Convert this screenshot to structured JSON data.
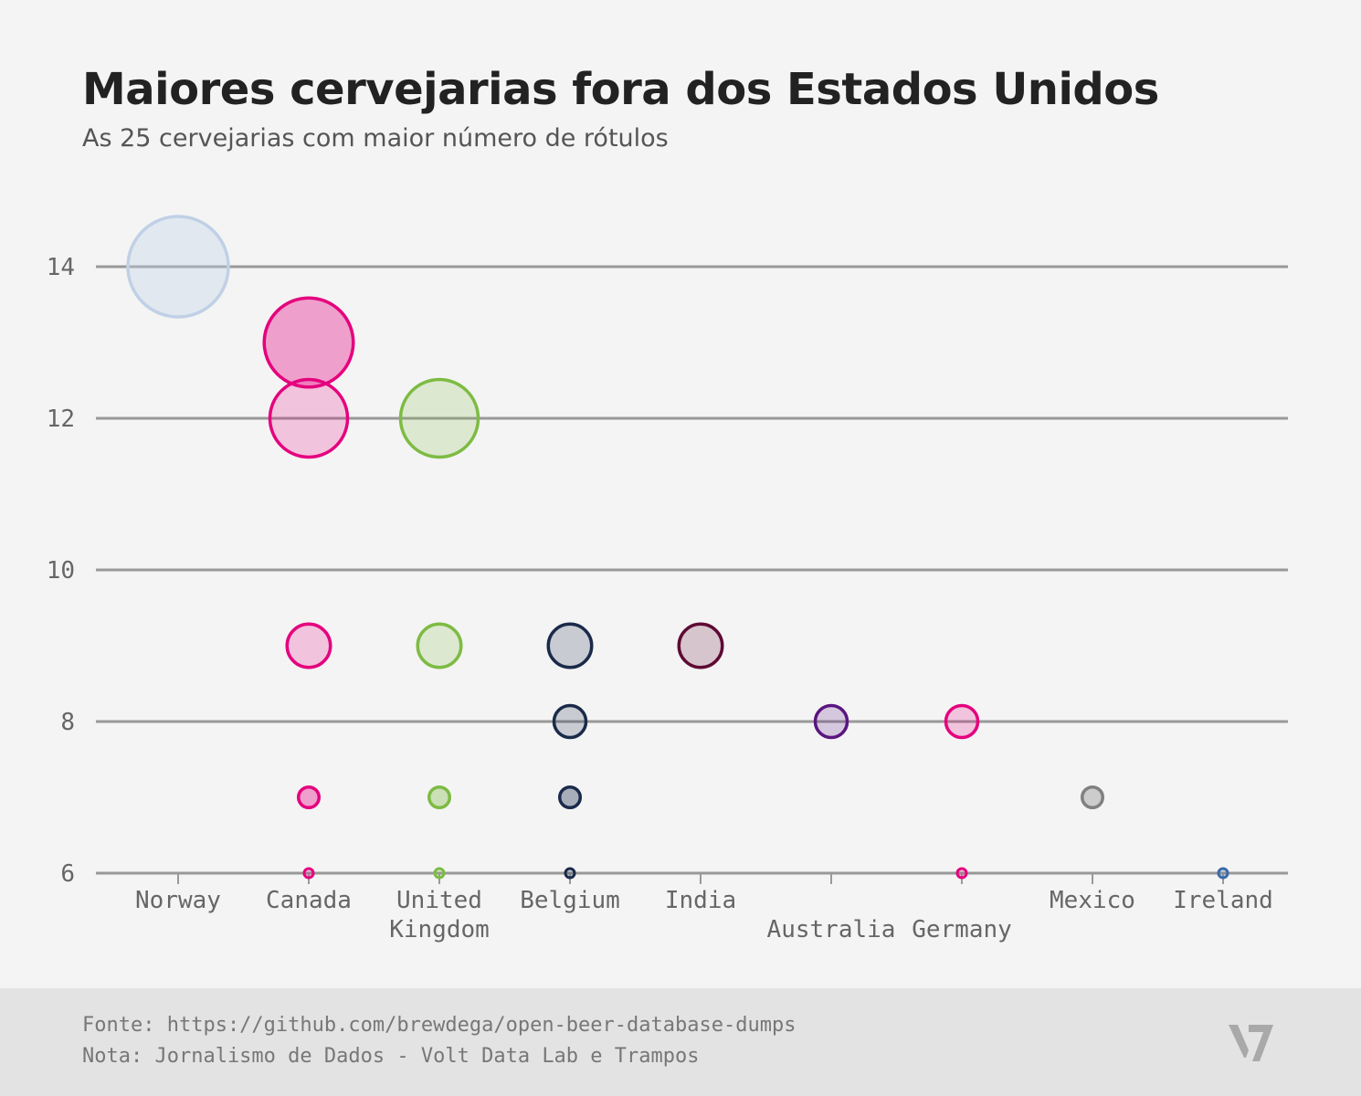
{
  "title": "Maiores cervejarias fora dos Estados Unidos",
  "subtitle": "As 25 cervejarias com maior número de rótulos",
  "footer": {
    "source": "Fonte: https://github.com/brewdega/open-beer-database-dumps",
    "note": "Nota: Jornalismo de Dados - Volt Data Lab e Trampos"
  },
  "chart_data": {
    "type": "scatter",
    "title": "Maiores cervejarias fora dos Estados Unidos",
    "subtitle": "As 25 cervejarias com maior número de rótulos",
    "xlabel": "",
    "ylabel": "",
    "ylim": [
      6,
      14
    ],
    "yticks": [
      6,
      8,
      10,
      12,
      14
    ],
    "grid": true,
    "categories": [
      "Norway",
      "Canada",
      "United Kingdom",
      "Belgium",
      "India",
      "Australia",
      "Germany",
      "Mexico",
      "Ireland"
    ],
    "category_labels": [
      [
        "Norway"
      ],
      [
        "Canada"
      ],
      [
        "United",
        "Kingdom"
      ],
      [
        "Belgium"
      ],
      [
        "India"
      ],
      [
        "",
        "Australia"
      ],
      [
        "",
        "Germany"
      ],
      [
        "Mexico"
      ],
      [
        "Ireland"
      ]
    ],
    "colors": {
      "Norway": "#c0d0e6",
      "Canada": "#e5007e",
      "United Kingdom": "#7dbb42",
      "Belgium": "#1a2a4a",
      "India": "#5e0a34",
      "Australia": "#5b1580",
      "Germany": "#e5007e",
      "Mexico": "#808080",
      "Ireland": "#3a6aa8"
    },
    "points": [
      {
        "category": "Norway",
        "y": 14
      },
      {
        "category": "Canada",
        "y": 13
      },
      {
        "category": "Canada",
        "y": 12
      },
      {
        "category": "Canada",
        "y": 9
      },
      {
        "category": "Canada",
        "y": 7
      },
      {
        "category": "Canada",
        "y": 6
      },
      {
        "category": "United Kingdom",
        "y": 12
      },
      {
        "category": "United Kingdom",
        "y": 9
      },
      {
        "category": "United Kingdom",
        "y": 7
      },
      {
        "category": "United Kingdom",
        "y": 6
      },
      {
        "category": "Belgium",
        "y": 9
      },
      {
        "category": "Belgium",
        "y": 8
      },
      {
        "category": "Belgium",
        "y": 7
      },
      {
        "category": "Belgium",
        "y": 6
      },
      {
        "category": "India",
        "y": 9
      },
      {
        "category": "Australia",
        "y": 8
      },
      {
        "category": "Germany",
        "y": 8
      },
      {
        "category": "Germany",
        "y": 6
      },
      {
        "category": "Mexico",
        "y": 7
      },
      {
        "category": "Ireland",
        "y": 6
      }
    ]
  }
}
